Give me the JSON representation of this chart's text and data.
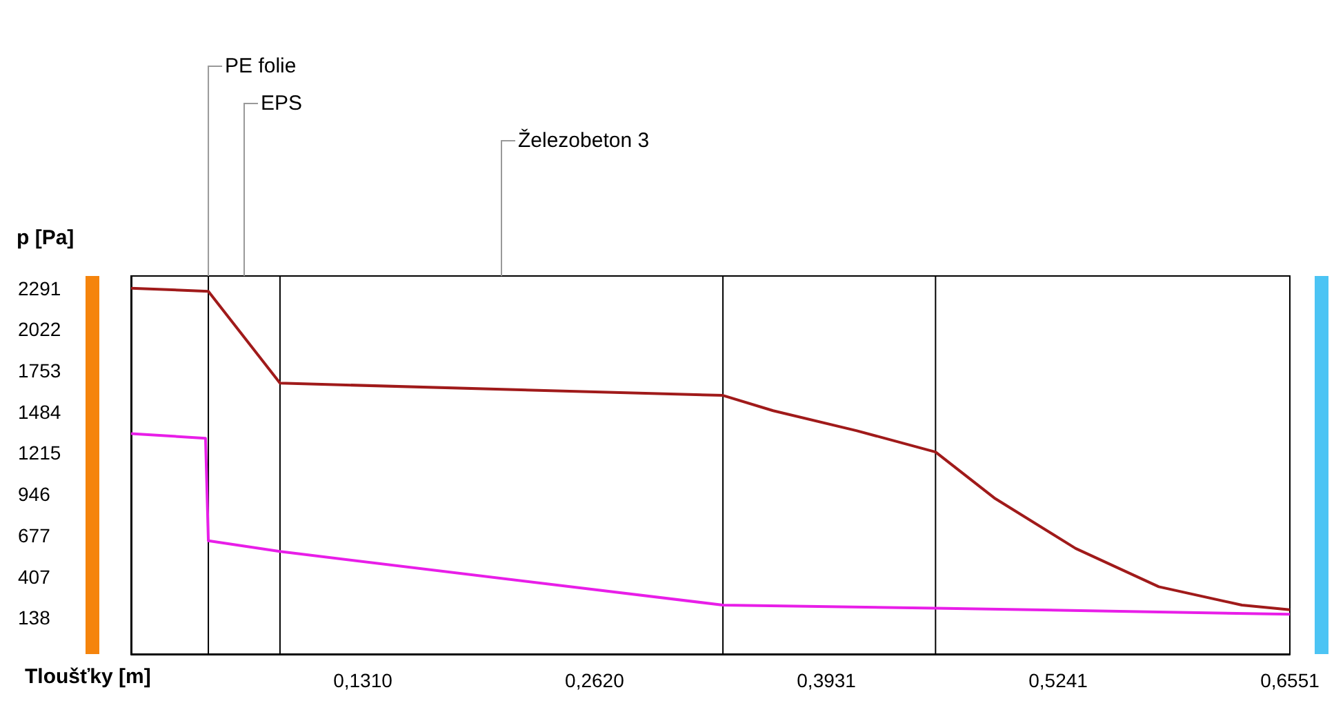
{
  "chart_data": {
    "type": "line",
    "xlabel": "Tloušťky [m]",
    "ylabel": "p [Pa]",
    "xlim": [
      0,
      0.6551
    ],
    "ylim": [
      -100,
      2370
    ],
    "xticks": [
      {
        "value": 0.131,
        "label": "0,1310"
      },
      {
        "value": 0.262,
        "label": "0,2620"
      },
      {
        "value": 0.3931,
        "label": "0,3931"
      },
      {
        "value": 0.5241,
        "label": "0,5241"
      },
      {
        "value": 0.6551,
        "label": "0,6551"
      }
    ],
    "yticks": [
      138,
      407,
      677,
      946,
      1215,
      1484,
      1753,
      2022,
      2291
    ],
    "grid": false,
    "marker": "none",
    "line_style": "solid",
    "series": [
      {
        "color": "#a01a1a",
        "x": [
          0,
          0.0437,
          0.0842,
          0.3346,
          0.363,
          0.41,
          0.4548,
          0.488,
          0.534,
          0.581,
          0.628,
          0.6551
        ],
        "values": [
          2290,
          2270,
          1670,
          1590,
          1490,
          1360,
          1220,
          920,
          590,
          340,
          220,
          190
        ]
      },
      {
        "color": "#e81ee8",
        "x": [
          0,
          0.0421,
          0.0437,
          0.0842,
          0.3346,
          0.4548,
          0.6551
        ],
        "values": [
          1340,
          1310,
          640,
          570,
          220,
          200,
          160
        ]
      }
    ],
    "ref_lines": [
      {
        "axis": "x",
        "value": 0.0437,
        "color": "#000000"
      },
      {
        "axis": "x",
        "value": 0.0842,
        "color": "#000000"
      },
      {
        "axis": "x",
        "value": 0.3346,
        "color": "#000000"
      },
      {
        "axis": "x",
        "value": 0.4548,
        "color": "#000000"
      }
    ],
    "annotations": [
      {
        "text": "PE folie",
        "x": 0.0437,
        "y": 2370
      },
      "EPS",
      "Železobeton 3"
    ]
  }
}
